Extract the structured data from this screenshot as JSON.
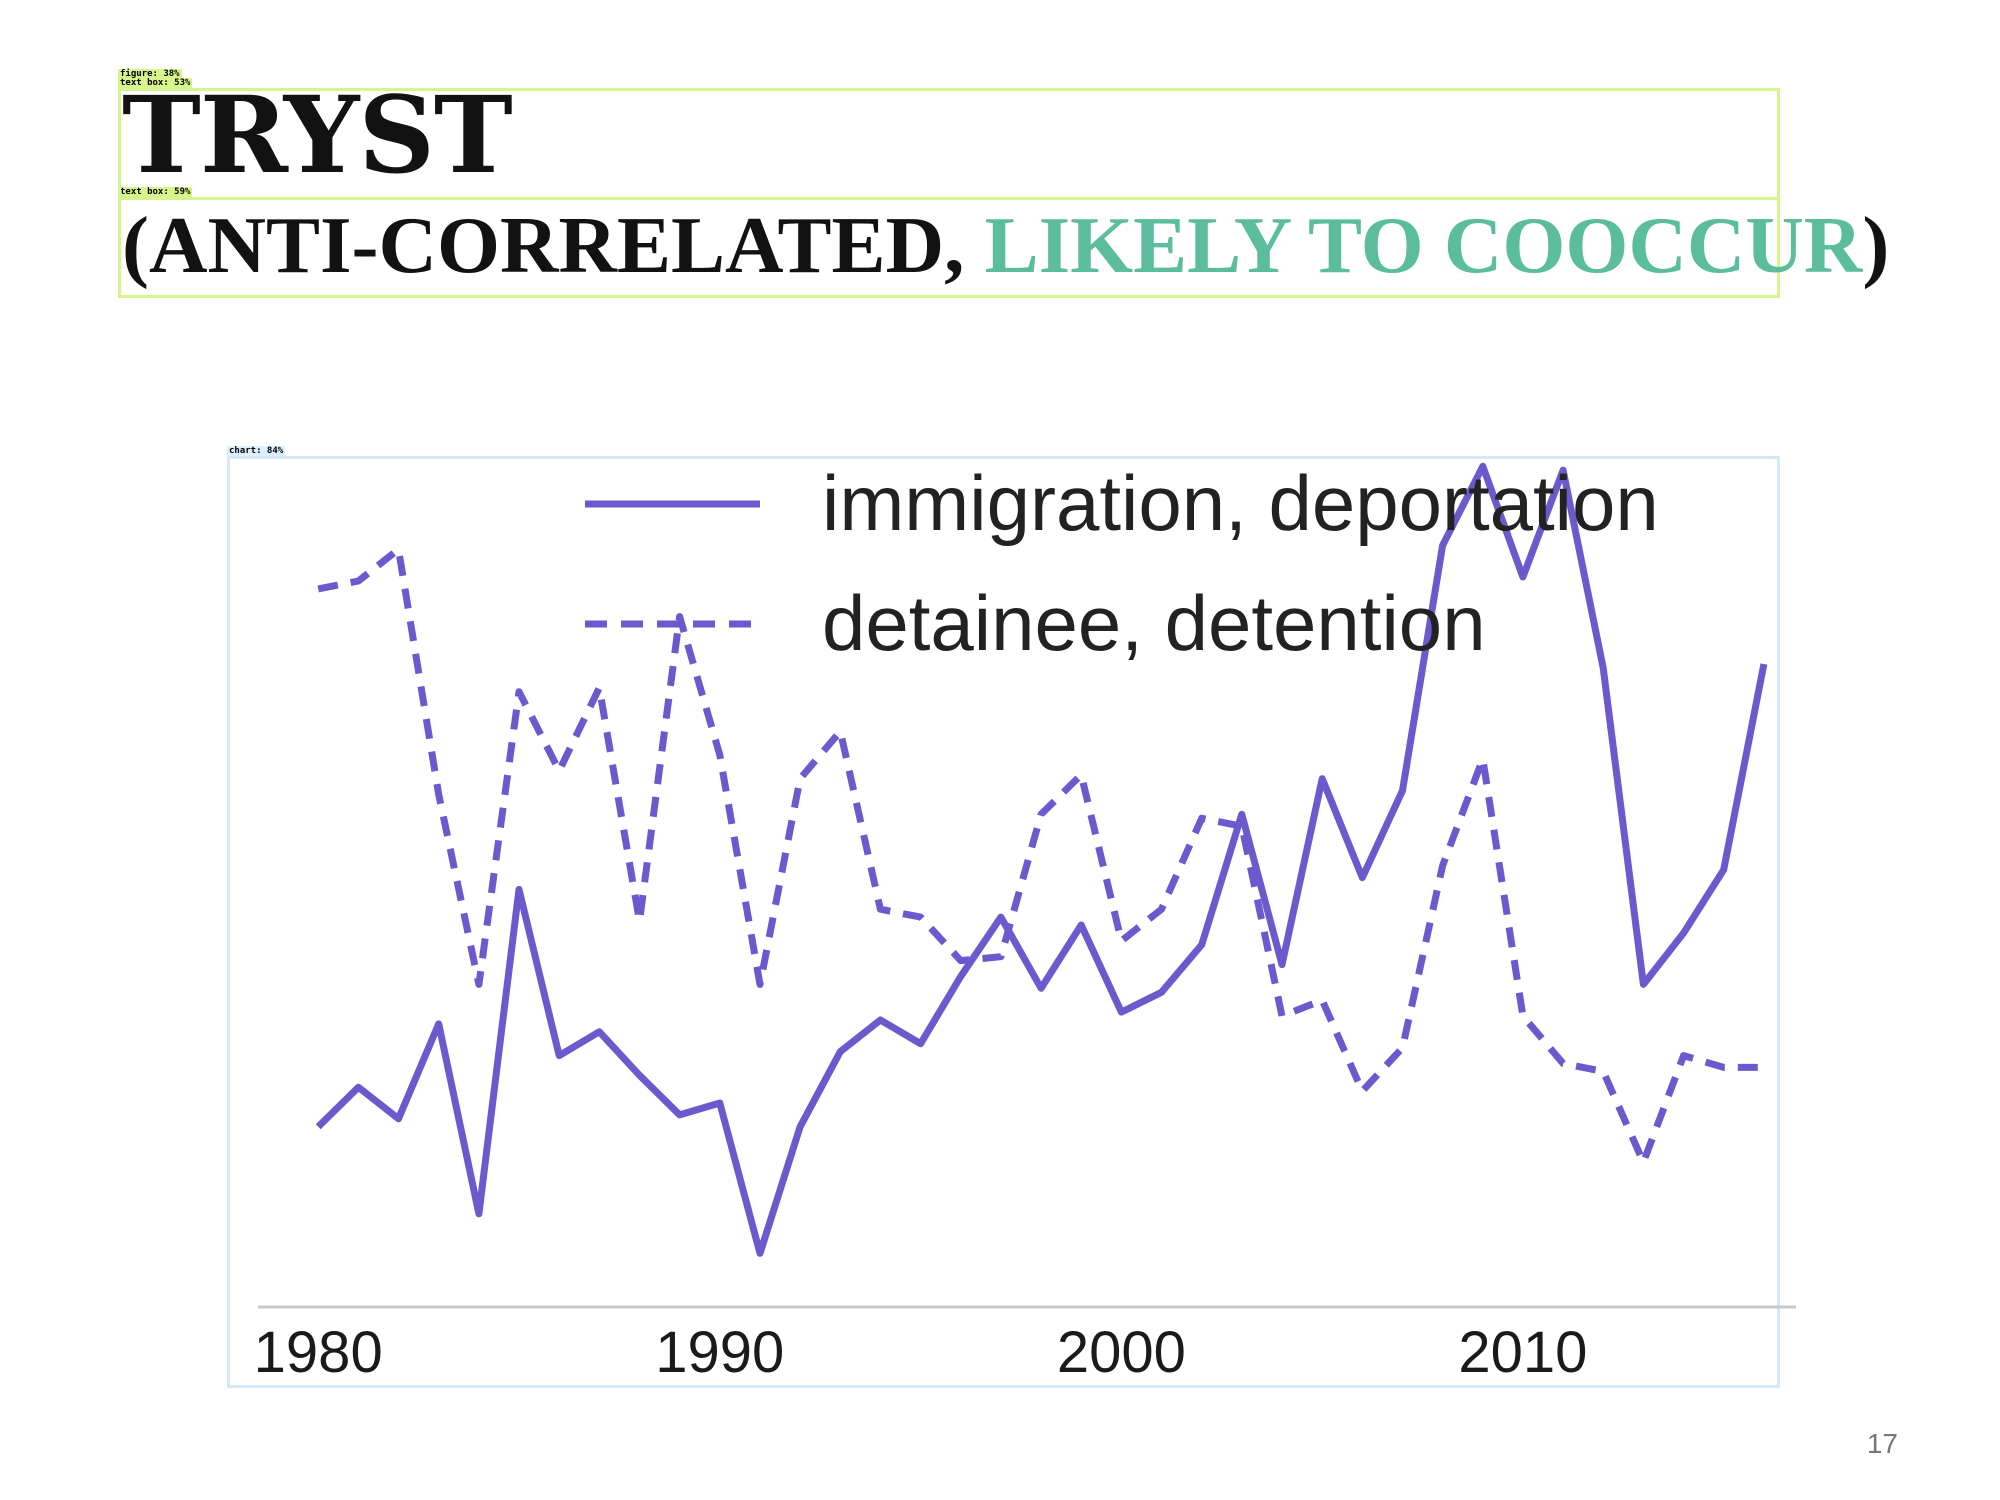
{
  "detection_labels": {
    "figure": "figure: 38%",
    "text_box_1": "text box: 53%",
    "text_box_2": "text box: 59%",
    "chart": "chart: 84%"
  },
  "slide": {
    "title": "TRYST",
    "subtitle_open": "(ANTI-CORRELATED, ",
    "subtitle_accent": "LIKELY TO COOCCUR",
    "subtitle_close": ")",
    "accent_color": "#5bbd9b",
    "page_number": "17"
  },
  "chart_data": {
    "type": "line",
    "x_ticks": [
      "1980",
      "1990",
      "2000",
      "2010"
    ],
    "xlim": [
      1978.5,
      2016.8
    ],
    "ylim": [
      0,
      100
    ],
    "grid": false,
    "legend_position": "top",
    "line_color": "#6a5acd",
    "series": [
      {
        "name": "immigration, deportation",
        "style": "solid",
        "x": [
          1980,
          1981,
          1982,
          1983,
          1984,
          1985,
          1986,
          1987,
          1988,
          1989,
          1990,
          1991,
          1992,
          1993,
          1994,
          1995,
          1996,
          1997,
          1998,
          1999,
          2000,
          2001,
          2002,
          2003,
          2004,
          2005,
          2006,
          2007,
          2008,
          2009,
          2010,
          2011,
          2012,
          2013,
          2014,
          2015,
          2016
        ],
        "values": [
          19.5,
          24.5,
          20.5,
          32.5,
          8.5,
          49.5,
          28.5,
          31.5,
          26.0,
          21.0,
          22.5,
          3.5,
          19.5,
          29.0,
          33.0,
          30.0,
          38.5,
          46.0,
          37.0,
          45.0,
          34.0,
          36.5,
          42.5,
          59.0,
          40.0,
          63.5,
          51.0,
          62.0,
          93.0,
          103.0,
          89.0,
          102.5,
          77.5,
          37.5,
          44.0,
          52.0,
          78.0
        ]
      },
      {
        "name": "detainee, detention",
        "style": "dashed",
        "x": [
          1980,
          1981,
          1982,
          1983,
          1984,
          1985,
          1986,
          1987,
          1988,
          1989,
          1990,
          1991,
          1992,
          1993,
          1994,
          1995,
          1996,
          1997,
          1998,
          1999,
          2000,
          2001,
          2002,
          2003,
          2004,
          2005,
          2006,
          2007,
          2008,
          2009,
          2010,
          2011,
          2012,
          2013,
          2014,
          2015,
          2016
        ],
        "values": [
          87.5,
          88.5,
          92.5,
          61.5,
          37.5,
          74.5,
          64.5,
          75.0,
          45.5,
          84.0,
          66.5,
          37.5,
          63.5,
          69.5,
          47.0,
          46.0,
          40.5,
          41.0,
          59.0,
          64.0,
          43.0,
          47.0,
          58.5,
          57.5,
          33.5,
          35.5,
          24.0,
          29.5,
          52.5,
          66.0,
          33.5,
          27.5,
          26.5,
          15.0,
          28.5,
          27.0,
          27.0
        ]
      }
    ]
  }
}
